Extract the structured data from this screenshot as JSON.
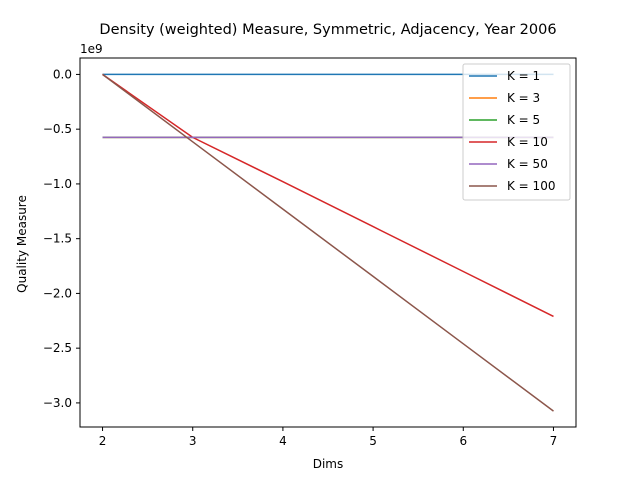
{
  "chart_data": {
    "type": "line",
    "title": "Density (weighted) Measure, Symmetric, Adjacency, Year 2006",
    "xlabel": "Dims",
    "ylabel": "Quality Measure",
    "y_offset_label": "1e9",
    "xlim": [
      1.75,
      7.25
    ],
    "ylim": [
      -3.22,
      0.15
    ],
    "x_ticks": [
      2,
      3,
      4,
      5,
      6,
      7
    ],
    "x_tick_labels": [
      "2",
      "3",
      "4",
      "5",
      "6",
      "7"
    ],
    "y_ticks": [
      0.0,
      -0.5,
      -1.0,
      -1.5,
      -2.0,
      -2.5,
      -3.0
    ],
    "y_tick_labels": [
      "0.0",
      "−0.5",
      "−1.0",
      "−1.5",
      "−2.0",
      "−2.5",
      "−3.0"
    ],
    "grid": false,
    "legend_position": "top-right",
    "x": [
      2,
      3,
      4,
      5,
      6,
      7
    ],
    "series": [
      {
        "name": "K = 1",
        "color": "#1f77b4",
        "values": [
          0.0,
          0.0,
          0.0,
          0.0,
          0.0,
          0.0
        ]
      },
      {
        "name": "K = 3",
        "color": "#ff7f0e",
        "values": [
          -0.575,
          -0.575,
          -0.575,
          -0.575,
          -0.575,
          -0.575
        ]
      },
      {
        "name": "K = 5",
        "color": "#2ca02c",
        "values": [
          -0.575,
          -0.575,
          -0.575,
          -0.575,
          -0.575,
          -0.575
        ]
      },
      {
        "name": "K = 10",
        "color": "#d62728",
        "values": [
          0.0,
          -0.575,
          -0.98,
          -1.39,
          -1.8,
          -2.21
        ]
      },
      {
        "name": "K = 50",
        "color": "#9467bd",
        "values": [
          -0.575,
          -0.575,
          -0.575,
          -0.575,
          -0.575,
          -0.575
        ]
      },
      {
        "name": "K = 100",
        "color": "#8c564b",
        "values": [
          0.0,
          -0.615,
          -1.23,
          -1.845,
          -2.46,
          -3.075
        ]
      }
    ]
  }
}
